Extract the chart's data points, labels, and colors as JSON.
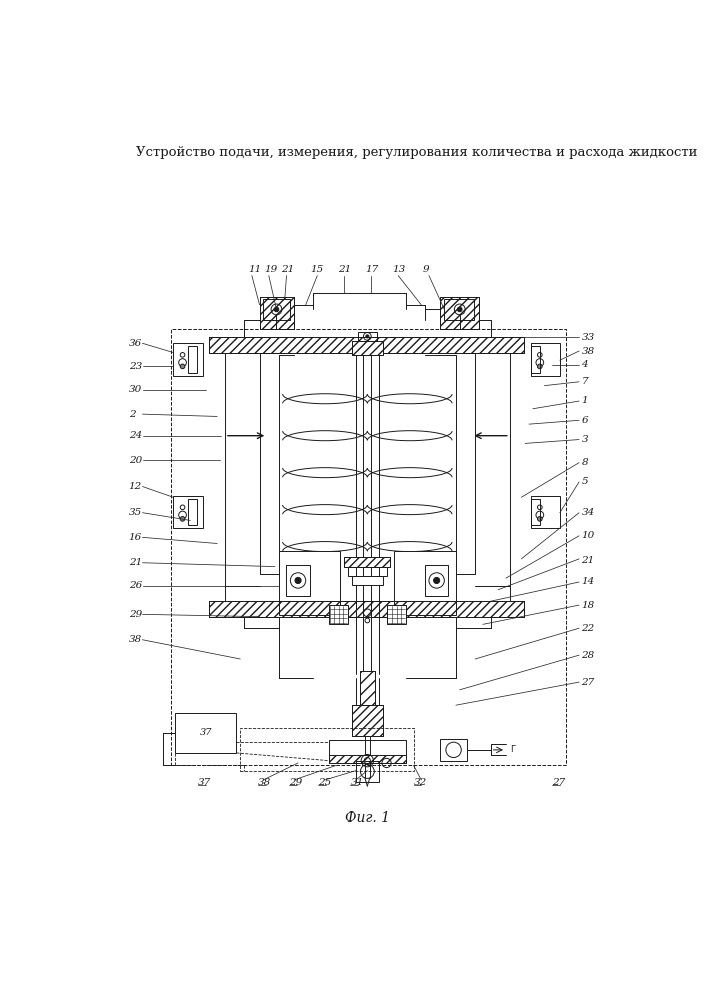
{
  "title": "Устройство подачи, измерения, регулирования количества и расхода жидкости",
  "fig_label": "Фиг. 1",
  "bg_color": "#ffffff",
  "line_color": "#1a1a1a",
  "title_fontsize": 9.5,
  "fig_label_fontsize": 10
}
